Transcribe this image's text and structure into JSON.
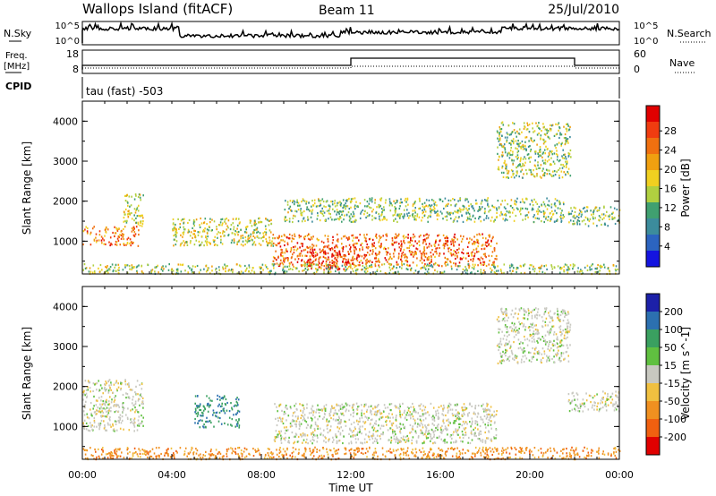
{
  "header": {
    "station": "Wallops Island (fitACF)",
    "beam": "Beam 11",
    "date": "25/Jul/2010"
  },
  "strip_labels": {
    "nsky": "N.Sky",
    "nsky_ticks": [
      "10^5",
      "10^0"
    ],
    "freq": "Freq.",
    "freq_unit": "[MHz]",
    "freq_ticks": [
      "18",
      "8"
    ],
    "cpid": "CPID",
    "cpid_value": "tau (fast) -503",
    "nsearch": "N.Search",
    "nsearch_ticks": [
      "10^5",
      "10^0"
    ],
    "nave": "Nave",
    "nave_ticks": [
      "60",
      "0"
    ]
  },
  "chart_data": [
    {
      "type": "heatmap",
      "panel": "power",
      "xlabel": "",
      "ylabel": "Slant Range [km]",
      "x_range_hours": [
        0,
        24
      ],
      "y_range_km": [
        180,
        4500
      ],
      "y_ticks": [
        "1000",
        "2000",
        "3000",
        "4000"
      ],
      "colorbar_label": "Power [dB]",
      "colorbar_ticks": [
        "4",
        "8",
        "12",
        "16",
        "20",
        "24",
        "28"
      ],
      "colorbar_colors": [
        "#1414e0",
        "#2c64c0",
        "#3c8c9c",
        "#40a070",
        "#b0d040",
        "#f0d020",
        "#f0a010",
        "#f07010",
        "#f03c10",
        "#e00000"
      ],
      "features": [
        {
          "t0": 0.0,
          "t1": 2.5,
          "r0": 900,
          "r1": 1400,
          "level": 0.75
        },
        {
          "t0": 1.8,
          "t1": 2.7,
          "r0": 1400,
          "r1": 2200,
          "level": 0.5
        },
        {
          "t0": 4.0,
          "t1": 8.5,
          "r0": 900,
          "r1": 1600,
          "level": 0.5
        },
        {
          "t0": 8.5,
          "t1": 18.5,
          "r0": 400,
          "r1": 1200,
          "level": 0.8
        },
        {
          "t0": 10.0,
          "t1": 12.0,
          "r0": 300,
          "r1": 900,
          "level": 0.95
        },
        {
          "t0": 9.0,
          "t1": 21.5,
          "r0": 1500,
          "r1": 2100,
          "level": 0.4
        },
        {
          "t0": 18.5,
          "t1": 21.8,
          "r0": 2600,
          "r1": 4000,
          "level": 0.45
        },
        {
          "t0": 21.7,
          "t1": 24.0,
          "r0": 1400,
          "r1": 1900,
          "level": 0.4
        },
        {
          "t0": 0.0,
          "t1": 24.0,
          "r0": 200,
          "r1": 450,
          "level": 0.45
        }
      ]
    },
    {
      "type": "heatmap",
      "panel": "velocity",
      "xlabel": "Time UT",
      "ylabel": "Slant Range [km]",
      "x_range_hours": [
        0,
        24
      ],
      "x_ticks": [
        "00:00",
        "04:00",
        "08:00",
        "12:00",
        "16:00",
        "20:00",
        "00:00"
      ],
      "y_range_km": [
        180,
        4500
      ],
      "y_ticks": [
        "1000",
        "2000",
        "3000",
        "4000"
      ],
      "colorbar_label": "Velocity [m s^-1]",
      "colorbar_ticks": [
        "200",
        "100",
        "50",
        "15",
        "-15",
        "-50",
        "-100",
        "-200"
      ],
      "colorbar_colors": [
        "#1c20a8",
        "#2c70b0",
        "#3aa060",
        "#60c040",
        "#c8c8c0",
        "#f0c040",
        "#f09020",
        "#f06010",
        "#e00000"
      ],
      "features": [
        {
          "t0": 0.0,
          "t1": 2.7,
          "r0": 900,
          "r1": 2200,
          "level": 0.0
        },
        {
          "t0": 5.0,
          "t1": 7.0,
          "r0": 1000,
          "r1": 1800,
          "level": 0.6
        },
        {
          "t0": 8.5,
          "t1": 18.5,
          "r0": 600,
          "r1": 1600,
          "level": 0.0
        },
        {
          "t0": 0.0,
          "t1": 24.0,
          "r0": 200,
          "r1": 500,
          "level": -0.5
        },
        {
          "t0": 18.5,
          "t1": 21.8,
          "r0": 2600,
          "r1": 4000,
          "level": 0.0
        },
        {
          "t0": 21.7,
          "t1": 24.0,
          "r0": 1400,
          "r1": 1900,
          "level": 0.0
        }
      ]
    }
  ]
}
